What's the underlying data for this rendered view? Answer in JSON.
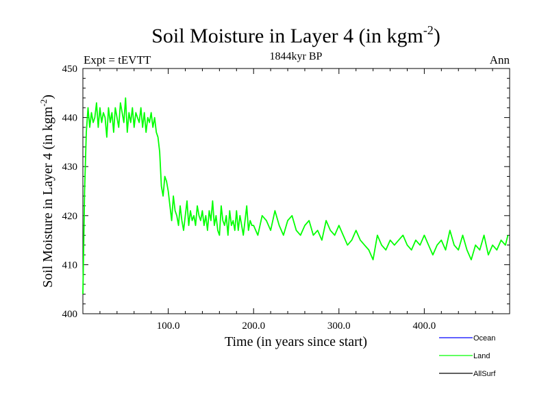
{
  "chart_data": {
    "type": "line",
    "title": "Soil Moisture in Layer 4 (in kgm",
    "title_sup": "-2",
    "title_end": ")",
    "subtitle_left": "Expt = tEVTT",
    "subtitle_center": "1844kyr BP",
    "subtitle_right": "Ann",
    "xlabel": "Time (in years since start)",
    "ylabel": "Soil Moisture in Layer 4 (in kgm",
    "ylabel_sup": "-2",
    "ylabel_end": ")",
    "xlim": [
      0,
      500
    ],
    "ylim": [
      400,
      450
    ],
    "xticks": [
      100,
      200,
      300,
      400
    ],
    "xtick_labels": [
      "100.0",
      "200.0",
      "300.0",
      "400.0"
    ],
    "yticks": [
      400,
      410,
      420,
      430,
      440,
      450
    ],
    "ytick_labels": [
      "400",
      "410",
      "420",
      "430",
      "440",
      "450"
    ],
    "legend": [
      {
        "name": "Ocean",
        "color": "#0000ff"
      },
      {
        "name": "Land",
        "color": "#00ff00"
      },
      {
        "name": "AllSurf",
        "color": "#000000"
      }
    ],
    "series": [
      {
        "name": "Land",
        "color": "#00ff00",
        "x": [
          0,
          2,
          4,
          6,
          8,
          10,
          12,
          14,
          16,
          18,
          20,
          22,
          24,
          26,
          28,
          30,
          32,
          34,
          36,
          38,
          40,
          42,
          44,
          46,
          48,
          50,
          52,
          54,
          56,
          58,
          60,
          62,
          64,
          66,
          68,
          70,
          72,
          74,
          76,
          78,
          80,
          82,
          84,
          86,
          88,
          90,
          92,
          94,
          96,
          98,
          100,
          102,
          104,
          106,
          108,
          110,
          112,
          114,
          116,
          118,
          120,
          122,
          124,
          126,
          128,
          130,
          132,
          134,
          136,
          138,
          140,
          142,
          144,
          146,
          148,
          150,
          152,
          154,
          156,
          158,
          160,
          162,
          164,
          166,
          168,
          170,
          172,
          174,
          176,
          178,
          180,
          182,
          184,
          186,
          188,
          190,
          192,
          194,
          196,
          198,
          200,
          205,
          210,
          215,
          220,
          225,
          230,
          235,
          240,
          245,
          250,
          255,
          260,
          265,
          270,
          275,
          280,
          285,
          290,
          295,
          300,
          305,
          310,
          315,
          320,
          325,
          330,
          335,
          340,
          345,
          350,
          355,
          360,
          365,
          370,
          375,
          380,
          385,
          390,
          395,
          400,
          405,
          410,
          415,
          420,
          425,
          430,
          435,
          440,
          445,
          450,
          455,
          460,
          465,
          470,
          475,
          480,
          485,
          490,
          495,
          498
        ],
        "values": [
          404,
          425,
          437,
          442,
          438,
          441,
          439,
          440,
          443,
          438,
          442,
          439,
          441,
          440,
          436,
          442,
          439,
          441,
          437,
          442,
          440,
          438,
          443,
          441,
          439,
          444,
          437,
          441,
          439,
          442,
          438,
          441,
          440,
          439,
          442,
          438,
          441,
          437,
          440,
          439,
          441,
          438,
          440,
          437,
          436,
          433,
          426,
          424,
          428,
          427,
          425,
          422,
          419,
          424,
          421,
          420,
          418,
          422,
          419,
          417,
          420,
          423,
          418,
          421,
          419,
          420,
          418,
          422,
          420,
          419,
          421,
          418,
          420,
          417,
          421,
          419,
          423,
          418,
          420,
          417,
          416,
          422,
          419,
          418,
          420,
          416,
          421,
          418,
          419,
          417,
          421,
          417,
          420,
          418,
          416,
          419,
          422,
          417,
          419,
          418,
          418,
          416,
          420,
          419,
          417,
          421,
          418,
          416,
          419,
          420,
          417,
          416,
          418,
          419,
          416,
          417,
          415,
          419,
          417,
          416,
          418,
          416,
          414,
          415,
          417,
          415,
          414,
          413,
          411,
          416,
          414,
          413,
          415,
          414,
          415,
          416,
          414,
          413,
          415,
          414,
          416,
          414,
          412,
          414,
          415,
          413,
          417,
          414,
          413,
          416,
          413,
          411,
          414,
          413,
          416,
          412,
          414,
          413,
          415,
          414,
          416
        ]
      }
    ]
  }
}
